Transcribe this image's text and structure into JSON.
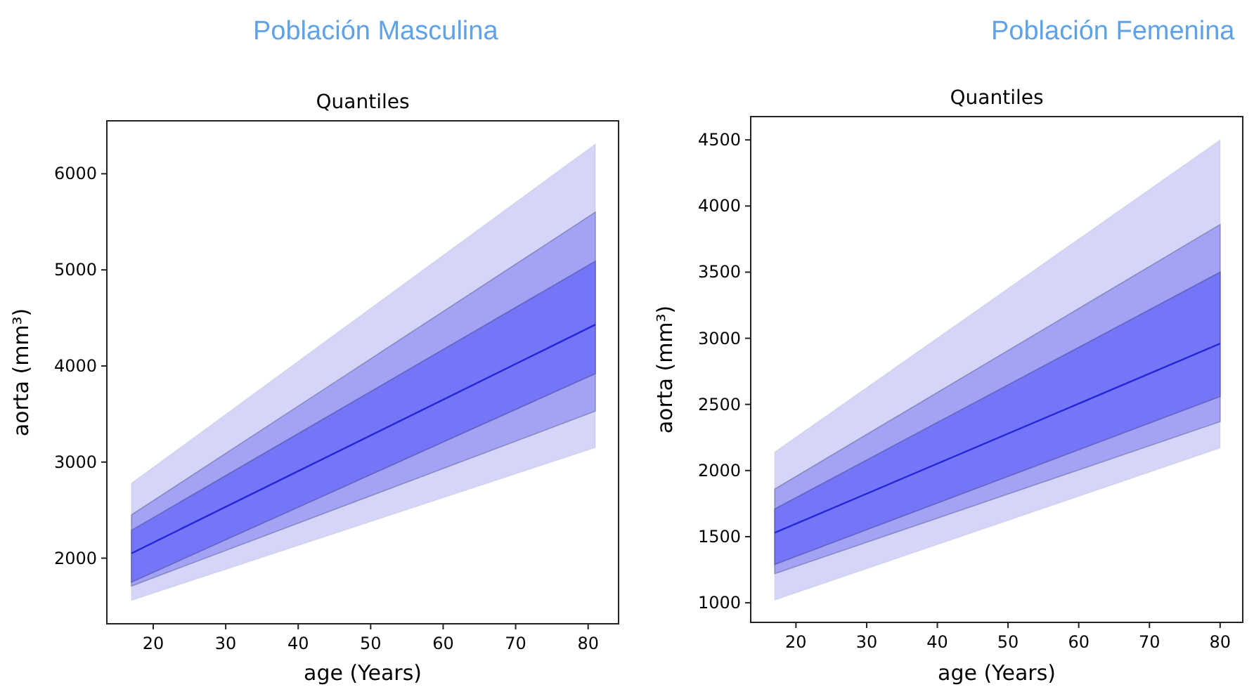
{
  "chart_data": [
    {
      "type": "line",
      "title": "Población Masculina",
      "subtitle": "Quantiles",
      "xlabel": "age (Years)",
      "ylabel": "aorta (mm³)",
      "x": [
        17,
        81
      ],
      "xlim": [
        13.6,
        84.2
      ],
      "ylim": [
        1317,
        6551
      ],
      "xticks": [
        20,
        30,
        40,
        50,
        60,
        70,
        80
      ],
      "yticks": [
        2000,
        3000,
        4000,
        5000,
        6000
      ],
      "grid": false,
      "series": [
        {
          "color": "#2626d9",
          "values": [
            2050,
            4430
          ]
        },
        {
          "color": "#7575f7",
          "values": [
            null,
            null
          ],
          "lower": [
            1750,
            3920
          ],
          "upper": [
            2290,
            5090
          ]
        },
        {
          "color": "#a3a3f5",
          "values": [
            null,
            null
          ],
          "lower": [
            1710,
            3530
          ],
          "upper": [
            2450,
            5600
          ]
        },
        {
          "color": "#d5d5f9",
          "values": [
            null,
            null
          ],
          "lower": [
            1560,
            3150
          ],
          "upper": [
            2780,
            6310
          ]
        }
      ]
    },
    {
      "type": "line",
      "title": "Población Femenina",
      "subtitle": "Quantiles",
      "xlabel": "age (Years)",
      "ylabel": "aorta (mm³)",
      "x": [
        17,
        80
      ],
      "xlim": [
        13.6,
        83.2
      ],
      "ylim": [
        852,
        4676
      ],
      "xticks": [
        20,
        30,
        40,
        50,
        60,
        70,
        80
      ],
      "yticks": [
        1000,
        1500,
        2000,
        2500,
        3000,
        3500,
        4000,
        4500
      ],
      "grid": false,
      "series": [
        {
          "color": "#2626d9",
          "values": [
            1530,
            2960
          ]
        },
        {
          "color": "#7575f7",
          "values": [
            null,
            null
          ],
          "lower": [
            1290,
            2560
          ],
          "upper": [
            1710,
            3500
          ]
        },
        {
          "color": "#a3a3f5",
          "values": [
            null,
            null
          ],
          "lower": [
            1220,
            2370
          ],
          "upper": [
            1860,
            3860
          ]
        },
        {
          "color": "#d5d5f9",
          "values": [
            null,
            null
          ],
          "lower": [
            1020,
            2170
          ],
          "upper": [
            2140,
            4500
          ]
        }
      ]
    }
  ]
}
